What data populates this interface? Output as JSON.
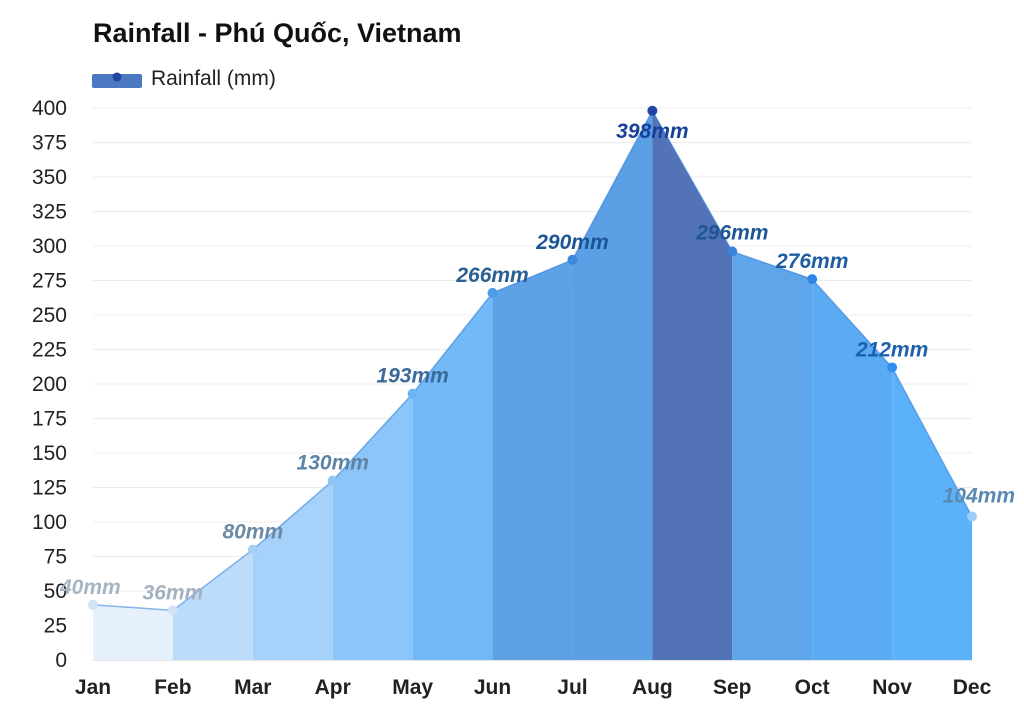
{
  "chart_data": {
    "type": "area",
    "title": "Rainfall - Phú Quốc, Vietnam",
    "xlabel": "",
    "ylabel": "",
    "ylim": [
      0,
      400
    ],
    "ytick_step": 25,
    "grid": true,
    "legend_position": "top-left",
    "categories": [
      "Jan",
      "Feb",
      "Mar",
      "Apr",
      "May",
      "Jun",
      "Jul",
      "Aug",
      "Sep",
      "Oct",
      "Nov",
      "Dec"
    ],
    "series": [
      {
        "name": "Rainfall (mm)",
        "values": [
          40,
          36,
          80,
          130,
          193,
          266,
          290,
          398,
          296,
          276,
          212,
          104
        ],
        "labels": [
          "40mm",
          "36mm",
          "80mm",
          "130mm",
          "193mm",
          "266mm",
          "290mm",
          "398mm",
          "296mm",
          "276mm",
          "212mm",
          "104mm"
        ]
      }
    ],
    "segment_colors": [
      "#e6f1fd",
      "#bcdcfb",
      "#a6d1fa",
      "#8bc5f9",
      "#72b9f7",
      "#5ea2e6",
      "#5b9fe5",
      "#5373b8",
      "#5ea5ea",
      "#5aabf2",
      "#5cb2f9",
      "#b3d8fb"
    ],
    "point_colors": [
      "#cfe2f6",
      "#d2e3f4",
      "#a6cff3",
      "#8cc5f6",
      "#6cb5f3",
      "#4e9be6",
      "#3d87dc",
      "#1f46a0",
      "#3a82dc",
      "#2f86e6",
      "#3090ef",
      "#9fcdfa"
    ],
    "label_colors": [
      "#a7b4c2",
      "#a4b1be",
      "#6b8aa6",
      "#5d84a7",
      "#3b6a9a",
      "#2a5f96",
      "#1c5595",
      "#17409b",
      "#1e5595",
      "#1f5da3",
      "#1c60ad",
      "#5b88b1"
    ],
    "legend_swatch_color": "#4a78c2",
    "legend_marker_color": "#1f46a0"
  }
}
